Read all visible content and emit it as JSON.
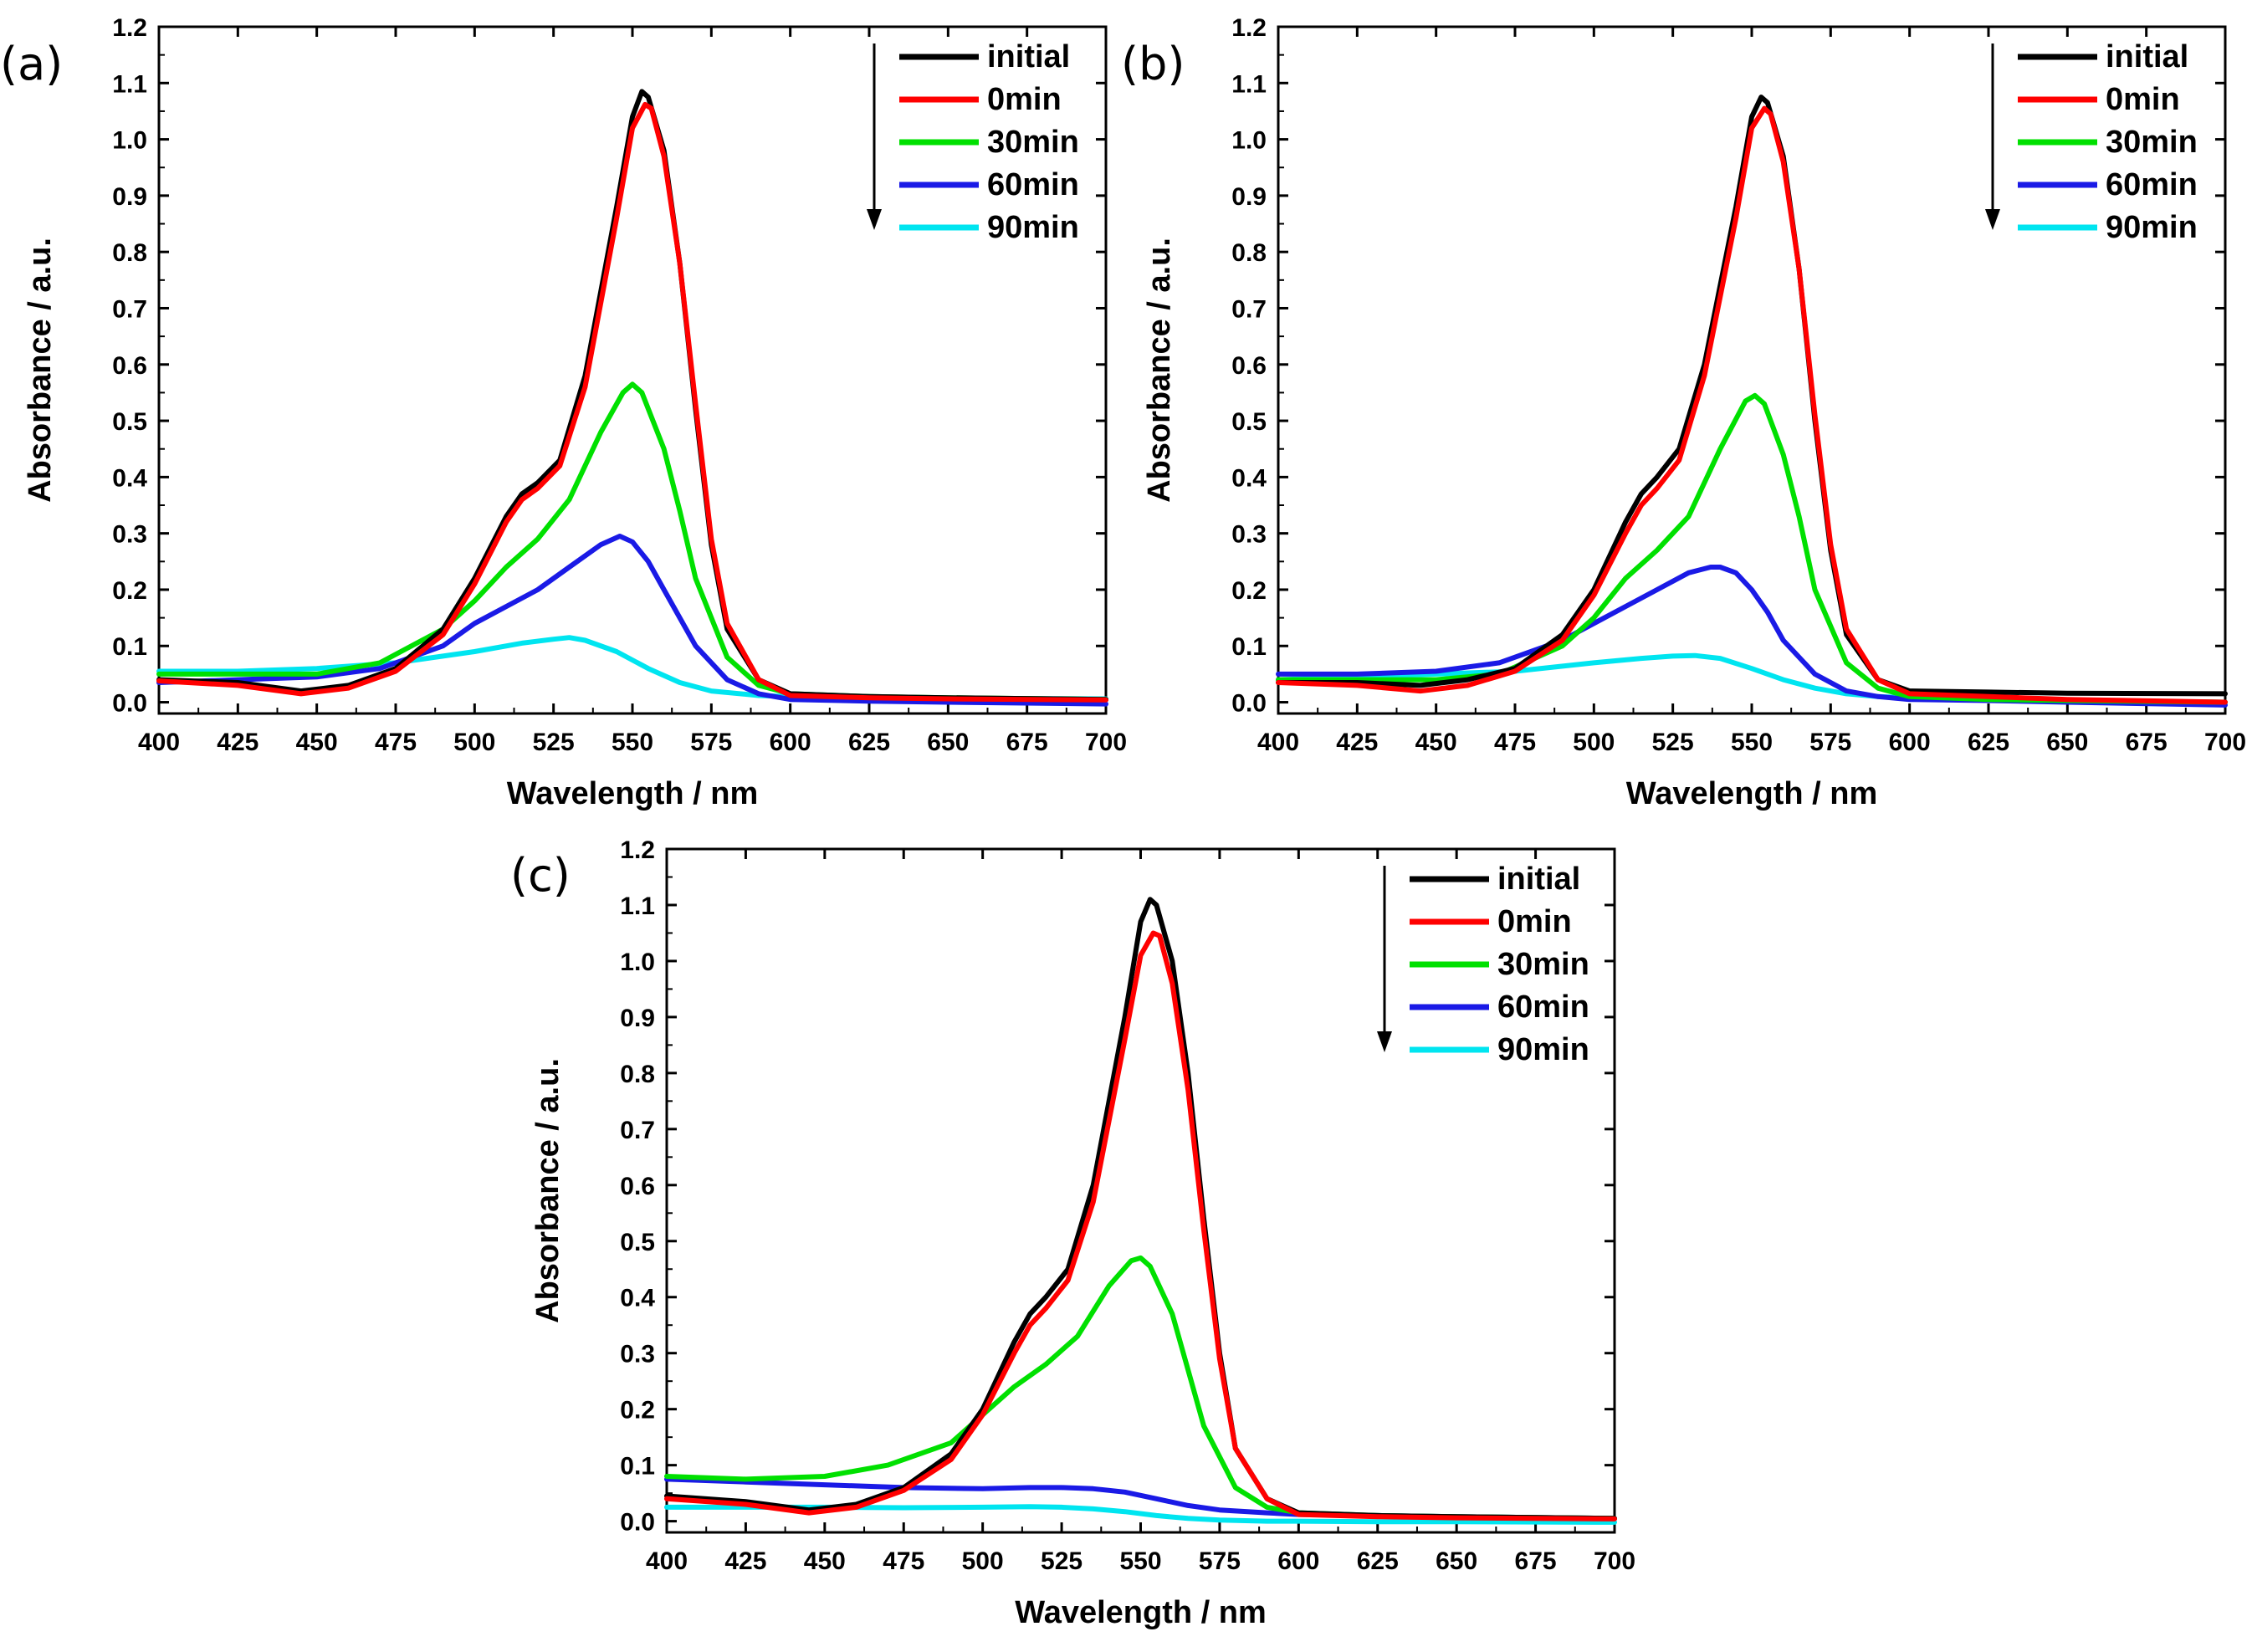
{
  "colors": {
    "initial": "#000000",
    "0min": "#ff0000",
    "30min": "#00e000",
    "60min": "#1a1ae6",
    "90min": "#00e5f0"
  },
  "chart_data": [
    {
      "panel_label": "(a)",
      "type": "line",
      "title": "",
      "xlabel": "Wavelength / nm",
      "ylabel": "Absorbance  / a.u.",
      "xlim": [
        400,
        700
      ],
      "ylim": [
        -0.02,
        1.2
      ],
      "xticks": [
        400,
        425,
        450,
        475,
        500,
        525,
        550,
        575,
        600,
        625,
        650,
        675,
        700
      ],
      "yticks": [
        0.0,
        0.1,
        0.2,
        0.3,
        0.4,
        0.5,
        0.6,
        0.7,
        0.8,
        0.9,
        1.0,
        1.1,
        1.2
      ],
      "legend_position": "top-right",
      "arrow": "downward arrow beside legend",
      "series": [
        {
          "name": "initial",
          "color_key": "initial",
          "x": [
            400,
            425,
            445,
            460,
            475,
            490,
            500,
            510,
            515,
            520,
            527,
            535,
            545,
            550,
            553,
            555,
            560,
            565,
            570,
            575,
            580,
            590,
            600,
            625,
            650,
            700
          ],
          "values": [
            0.04,
            0.035,
            0.02,
            0.03,
            0.06,
            0.13,
            0.22,
            0.33,
            0.37,
            0.39,
            0.43,
            0.58,
            0.88,
            1.04,
            1.085,
            1.075,
            0.98,
            0.78,
            0.52,
            0.28,
            0.13,
            0.04,
            0.015,
            0.01,
            0.008,
            0.005
          ]
        },
        {
          "name": "0min",
          "color_key": "0min",
          "x": [
            400,
            425,
            445,
            460,
            475,
            490,
            500,
            510,
            515,
            520,
            527,
            535,
            545,
            550,
            554,
            556,
            560,
            565,
            570,
            575,
            580,
            590,
            600,
            625,
            650,
            700
          ],
          "values": [
            0.038,
            0.03,
            0.015,
            0.025,
            0.055,
            0.12,
            0.21,
            0.32,
            0.36,
            0.38,
            0.42,
            0.56,
            0.86,
            1.02,
            1.062,
            1.055,
            0.97,
            0.78,
            0.53,
            0.29,
            0.14,
            0.04,
            0.012,
            0.008,
            0.006,
            0.004
          ]
        },
        {
          "name": "30min",
          "color_key": "30min",
          "x": [
            400,
            425,
            450,
            470,
            490,
            500,
            510,
            520,
            530,
            540,
            547,
            550,
            553,
            560,
            565,
            570,
            580,
            590,
            600,
            625,
            650,
            700
          ],
          "values": [
            0.05,
            0.05,
            0.05,
            0.07,
            0.13,
            0.18,
            0.24,
            0.29,
            0.36,
            0.48,
            0.55,
            0.565,
            0.55,
            0.45,
            0.34,
            0.22,
            0.08,
            0.03,
            0.015,
            0.01,
            0.008,
            0.005
          ]
        },
        {
          "name": "60min",
          "color_key": "60min",
          "x": [
            400,
            425,
            450,
            470,
            490,
            500,
            510,
            520,
            530,
            540,
            546,
            550,
            555,
            560,
            570,
            580,
            590,
            600,
            625,
            650,
            700
          ],
          "values": [
            0.035,
            0.04,
            0.045,
            0.06,
            0.1,
            0.14,
            0.17,
            0.2,
            0.24,
            0.28,
            0.295,
            0.285,
            0.25,
            0.2,
            0.1,
            0.04,
            0.015,
            0.005,
            0.002,
            0.0,
            -0.003
          ]
        },
        {
          "name": "90min",
          "color_key": "90min",
          "x": [
            400,
            425,
            450,
            475,
            500,
            515,
            525,
            530,
            535,
            545,
            555,
            565,
            575,
            590,
            600,
            625,
            650,
            700
          ],
          "values": [
            0.055,
            0.055,
            0.06,
            0.07,
            0.09,
            0.105,
            0.112,
            0.115,
            0.11,
            0.09,
            0.06,
            0.035,
            0.02,
            0.012,
            0.01,
            0.008,
            0.007,
            0.006
          ]
        }
      ]
    },
    {
      "panel_label": "(b)",
      "type": "line",
      "title": "",
      "xlabel": "Wavelength / nm",
      "ylabel": "Absorbance  / a.u.",
      "xlim": [
        400,
        700
      ],
      "ylim": [
        -0.02,
        1.2
      ],
      "xticks": [
        400,
        425,
        450,
        475,
        500,
        525,
        550,
        575,
        600,
        625,
        650,
        675,
        700
      ],
      "yticks": [
        0.0,
        0.1,
        0.2,
        0.3,
        0.4,
        0.5,
        0.6,
        0.7,
        0.8,
        0.9,
        1.0,
        1.1,
        1.2
      ],
      "legend_position": "top-right",
      "arrow": "downward arrow beside legend",
      "series": [
        {
          "name": "initial",
          "color_key": "initial",
          "x": [
            400,
            425,
            445,
            460,
            475,
            490,
            500,
            510,
            515,
            520,
            527,
            535,
            545,
            550,
            553,
            555,
            560,
            565,
            570,
            575,
            580,
            590,
            600,
            625,
            650,
            700
          ],
          "values": [
            0.035,
            0.035,
            0.03,
            0.04,
            0.06,
            0.12,
            0.2,
            0.32,
            0.37,
            0.4,
            0.45,
            0.6,
            0.88,
            1.04,
            1.075,
            1.065,
            0.97,
            0.77,
            0.5,
            0.27,
            0.12,
            0.04,
            0.02,
            0.018,
            0.016,
            0.015
          ]
        },
        {
          "name": "0min",
          "color_key": "0min",
          "x": [
            400,
            425,
            445,
            460,
            475,
            490,
            500,
            510,
            515,
            520,
            527,
            535,
            545,
            550,
            554,
            556,
            560,
            565,
            570,
            575,
            580,
            590,
            600,
            625,
            650,
            700
          ],
          "values": [
            0.035,
            0.03,
            0.02,
            0.03,
            0.055,
            0.11,
            0.19,
            0.3,
            0.35,
            0.38,
            0.43,
            0.58,
            0.86,
            1.02,
            1.055,
            1.045,
            0.96,
            0.77,
            0.51,
            0.28,
            0.13,
            0.04,
            0.015,
            0.01,
            0.005,
            0.0
          ]
        },
        {
          "name": "30min",
          "color_key": "30min",
          "x": [
            400,
            425,
            450,
            470,
            490,
            500,
            510,
            520,
            530,
            540,
            548,
            551,
            554,
            560,
            565,
            570,
            580,
            590,
            600,
            625,
            650,
            700
          ],
          "values": [
            0.04,
            0.04,
            0.04,
            0.05,
            0.1,
            0.15,
            0.22,
            0.27,
            0.33,
            0.45,
            0.535,
            0.545,
            0.53,
            0.44,
            0.33,
            0.2,
            0.07,
            0.025,
            0.01,
            0.005,
            0.003,
            0.0
          ]
        },
        {
          "name": "60min",
          "color_key": "60min",
          "x": [
            400,
            425,
            450,
            470,
            490,
            500,
            510,
            520,
            530,
            537,
            540,
            545,
            550,
            555,
            560,
            570,
            580,
            590,
            600,
            625,
            650,
            700
          ],
          "values": [
            0.05,
            0.05,
            0.055,
            0.07,
            0.11,
            0.14,
            0.17,
            0.2,
            0.23,
            0.24,
            0.24,
            0.23,
            0.2,
            0.16,
            0.11,
            0.05,
            0.02,
            0.01,
            0.005,
            0.003,
            0.0,
            -0.005
          ]
        },
        {
          "name": "90min",
          "color_key": "90min",
          "x": [
            400,
            425,
            450,
            475,
            500,
            515,
            525,
            532,
            540,
            550,
            560,
            570,
            580,
            590,
            600,
            625,
            650,
            700
          ],
          "values": [
            0.04,
            0.045,
            0.05,
            0.055,
            0.07,
            0.078,
            0.082,
            0.083,
            0.078,
            0.06,
            0.04,
            0.025,
            0.015,
            0.01,
            0.008,
            0.005,
            0.003,
            0.0
          ]
        }
      ]
    },
    {
      "panel_label": "(c)",
      "type": "line",
      "title": "",
      "xlabel": "Wavelength / nm",
      "ylabel": "Absorbance  / a.u.",
      "xlim": [
        400,
        700
      ],
      "ylim": [
        -0.02,
        1.2
      ],
      "xticks": [
        400,
        425,
        450,
        475,
        500,
        525,
        550,
        575,
        600,
        625,
        650,
        675,
        700
      ],
      "yticks": [
        0.0,
        0.1,
        0.2,
        0.3,
        0.4,
        0.5,
        0.6,
        0.7,
        0.8,
        0.9,
        1.0,
        1.1,
        1.2
      ],
      "legend_position": "top-right",
      "arrow": "downward arrow beside legend",
      "series": [
        {
          "name": "initial",
          "color_key": "initial",
          "x": [
            400,
            425,
            445,
            460,
            475,
            490,
            500,
            510,
            515,
            520,
            527,
            535,
            545,
            550,
            553,
            555,
            560,
            565,
            570,
            575,
            580,
            590,
            600,
            625,
            650,
            700
          ],
          "values": [
            0.045,
            0.035,
            0.02,
            0.03,
            0.06,
            0.12,
            0.2,
            0.32,
            0.37,
            0.4,
            0.45,
            0.6,
            0.9,
            1.07,
            1.11,
            1.1,
            1.0,
            0.8,
            0.54,
            0.3,
            0.13,
            0.04,
            0.015,
            0.01,
            0.008,
            0.005
          ]
        },
        {
          "name": "0min",
          "color_key": "0min",
          "x": [
            400,
            425,
            445,
            460,
            475,
            490,
            500,
            510,
            515,
            520,
            527,
            535,
            545,
            550,
            554,
            556,
            560,
            565,
            570,
            575,
            580,
            590,
            600,
            625,
            650,
            700
          ],
          "values": [
            0.04,
            0.03,
            0.015,
            0.025,
            0.055,
            0.11,
            0.19,
            0.3,
            0.35,
            0.38,
            0.43,
            0.57,
            0.86,
            1.01,
            1.05,
            1.045,
            0.96,
            0.77,
            0.52,
            0.29,
            0.13,
            0.04,
            0.012,
            0.008,
            0.006,
            0.004
          ]
        },
        {
          "name": "30min",
          "color_key": "30min",
          "x": [
            400,
            425,
            450,
            470,
            490,
            500,
            510,
            520,
            530,
            540,
            547,
            550,
            553,
            560,
            565,
            570,
            580,
            590,
            600,
            625,
            650,
            700
          ],
          "values": [
            0.08,
            0.075,
            0.08,
            0.1,
            0.14,
            0.19,
            0.24,
            0.28,
            0.33,
            0.42,
            0.465,
            0.47,
            0.455,
            0.37,
            0.27,
            0.17,
            0.06,
            0.025,
            0.015,
            0.01,
            0.008,
            0.005
          ]
        },
        {
          "name": "60min",
          "color_key": "60min",
          "x": [
            400,
            425,
            450,
            475,
            500,
            515,
            525,
            535,
            545,
            555,
            565,
            575,
            590,
            600,
            625,
            650,
            700
          ],
          "values": [
            0.075,
            0.07,
            0.065,
            0.06,
            0.058,
            0.06,
            0.06,
            0.058,
            0.052,
            0.04,
            0.028,
            0.02,
            0.015,
            0.012,
            0.01,
            0.008,
            0.005
          ]
        },
        {
          "name": "90min",
          "color_key": "90min",
          "x": [
            400,
            425,
            450,
            475,
            500,
            515,
            525,
            535,
            545,
            555,
            565,
            575,
            590,
            600,
            625,
            650,
            700
          ],
          "values": [
            0.025,
            0.025,
            0.025,
            0.024,
            0.025,
            0.026,
            0.025,
            0.022,
            0.017,
            0.01,
            0.005,
            0.002,
            0.0,
            0.0,
            -0.001,
            -0.001,
            -0.002
          ]
        }
      ]
    }
  ]
}
